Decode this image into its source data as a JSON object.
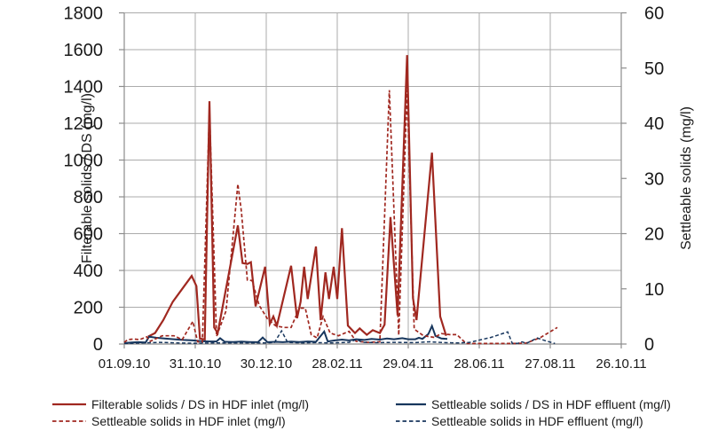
{
  "chart_data": {
    "type": "line",
    "title": "",
    "x_axis": {
      "tick_labels": [
        "01.09.10",
        "31.10.10",
        "30.12.10",
        "28.02.11",
        "29.04.11",
        "28.06.11",
        "27.08.11",
        "26.10.11"
      ],
      "major_tick_days": [
        0,
        60,
        120,
        180,
        240,
        300,
        360,
        420
      ],
      "range_days": [
        0,
        420
      ]
    },
    "left_axis": {
      "label": "Filterable solids / DS (mg/l)",
      "min": 0,
      "max": 1800,
      "tick_step": 200
    },
    "right_axis": {
      "label": "Settleable solids (mg/l)",
      "min": 0,
      "max": 60,
      "tick_step": 10
    },
    "grid": {
      "horizontal_step_left_units": 200,
      "vertical_at_major_ticks": true
    },
    "legend_position": "bottom",
    "colors": {
      "grid": "#ababab",
      "axis": "#8c8c8c",
      "tick_text": "#1a1a1a",
      "inlet_red": "#a02820",
      "effluent_blue": "#17365d"
    },
    "series": [
      {
        "name": "Filterable solids / DS in HDF inlet (mg/l)",
        "axis": "left",
        "style": "solid",
        "color": "#a02820",
        "width": 2.2,
        "points": [
          [
            20,
            40
          ],
          [
            26,
            60
          ],
          [
            33,
            130
          ],
          [
            41,
            230
          ],
          [
            49,
            300
          ],
          [
            57,
            370
          ],
          [
            61,
            315
          ],
          [
            64,
            30
          ],
          [
            68,
            25
          ],
          [
            72,
            1320
          ],
          [
            76,
            90
          ],
          [
            79,
            60
          ],
          [
            96,
            645
          ],
          [
            100,
            440
          ],
          [
            104,
            435
          ],
          [
            107,
            445
          ],
          [
            111,
            205
          ],
          [
            119,
            420
          ],
          [
            123,
            110
          ],
          [
            126,
            150
          ],
          [
            129,
            100
          ],
          [
            141,
            425
          ],
          [
            146,
            140
          ],
          [
            149,
            230
          ],
          [
            152,
            420
          ],
          [
            155,
            245
          ],
          [
            162,
            530
          ],
          [
            166,
            130
          ],
          [
            170,
            390
          ],
          [
            173,
            245
          ],
          [
            177,
            420
          ],
          [
            180,
            245
          ],
          [
            184,
            630
          ],
          [
            189,
            100
          ],
          [
            195,
            60
          ],
          [
            199,
            85
          ],
          [
            205,
            50
          ],
          [
            210,
            75
          ],
          [
            216,
            60
          ],
          [
            220,
            105
          ],
          [
            225,
            690
          ],
          [
            231,
            155
          ],
          [
            239,
            1570
          ],
          [
            244,
            250
          ],
          [
            247,
            130
          ],
          [
            260,
            1040
          ],
          [
            267,
            150
          ],
          [
            272,
            45
          ]
        ]
      },
      {
        "name": "Settleable solids in HDF inlet (mg/l)",
        "axis": "right",
        "style": "dashed",
        "color": "#a02820",
        "width": 1.7,
        "points": [
          [
            0,
            0.3
          ],
          [
            3,
            0.8
          ],
          [
            8,
            0.9
          ],
          [
            13,
            0.8
          ],
          [
            19,
            1.3
          ],
          [
            22,
            0.5
          ],
          [
            32,
            1.5
          ],
          [
            42,
            1.5
          ],
          [
            49,
            0.8
          ],
          [
            58,
            4.1
          ],
          [
            62,
            0.4
          ],
          [
            66,
            0.3
          ],
          [
            72,
            42.5
          ],
          [
            78,
            1.4
          ],
          [
            86,
            6
          ],
          [
            96,
            29
          ],
          [
            99,
            24
          ],
          [
            104,
            11.6
          ],
          [
            108,
            11.5
          ],
          [
            114,
            7
          ],
          [
            121,
            4.6
          ],
          [
            128,
            3.3
          ],
          [
            135,
            3
          ],
          [
            141,
            3
          ],
          [
            148,
            6.5
          ],
          [
            153,
            6.5
          ],
          [
            158,
            1.7
          ],
          [
            163,
            1.1
          ],
          [
            168,
            5
          ],
          [
            174,
            2
          ],
          [
            181,
            1.5
          ],
          [
            190,
            2.3
          ],
          [
            196,
            0.5
          ],
          [
            206,
            0.3
          ],
          [
            216,
            0.4
          ],
          [
            224,
            46
          ],
          [
            232,
            1.6
          ],
          [
            239,
            46
          ],
          [
            245,
            2.7
          ],
          [
            253,
            1.5
          ],
          [
            262,
            1.2
          ],
          [
            268,
            1.9
          ],
          [
            275,
            1.7
          ],
          [
            281,
            1.7
          ],
          [
            289,
            0.1
          ],
          [
            310,
            0.1
          ],
          [
            331,
            0.1
          ],
          [
            340,
            0.2
          ],
          [
            352,
            1.2
          ],
          [
            366,
            3
          ]
        ]
      },
      {
        "name": "Settleable solids / DS in HDF effluent (mg/l)",
        "axis": "left",
        "style": "solid",
        "color": "#17365d",
        "width": 2,
        "points": [
          [
            0,
            5
          ],
          [
            6,
            8
          ],
          [
            12,
            10
          ],
          [
            18,
            8
          ],
          [
            21,
            40
          ],
          [
            27,
            34
          ],
          [
            34,
            30
          ],
          [
            42,
            26
          ],
          [
            50,
            22
          ],
          [
            58,
            20
          ],
          [
            65,
            16
          ],
          [
            72,
            14
          ],
          [
            78,
            14
          ],
          [
            81,
            32
          ],
          [
            85,
            12
          ],
          [
            92,
            11
          ],
          [
            99,
            13
          ],
          [
            106,
            11
          ],
          [
            113,
            10
          ],
          [
            117,
            35
          ],
          [
            121,
            10
          ],
          [
            128,
            12
          ],
          [
            134,
            10
          ],
          [
            141,
            13
          ],
          [
            148,
            11
          ],
          [
            155,
            14
          ],
          [
            162,
            12
          ],
          [
            169,
            68
          ],
          [
            172,
            14
          ],
          [
            178,
            20
          ],
          [
            184,
            24
          ],
          [
            190,
            20
          ],
          [
            196,
            26
          ],
          [
            203,
            22
          ],
          [
            209,
            28
          ],
          [
            216,
            24
          ],
          [
            222,
            30
          ],
          [
            228,
            26
          ],
          [
            235,
            32
          ],
          [
            240,
            26
          ],
          [
            246,
            26
          ],
          [
            249,
            34
          ],
          [
            252,
            28
          ],
          [
            257,
            55
          ],
          [
            260,
            98
          ],
          [
            263,
            44
          ],
          [
            268,
            30
          ],
          [
            273,
            28
          ]
        ]
      },
      {
        "name": "Settleable solids in HDF effluent (mg/l)",
        "axis": "right",
        "style": "dashed",
        "color": "#17365d",
        "width": 1.5,
        "points": [
          [
            0,
            0.1
          ],
          [
            15,
            0.2
          ],
          [
            30,
            0.3
          ],
          [
            45,
            0.2
          ],
          [
            60,
            0.15
          ],
          [
            75,
            0.2
          ],
          [
            90,
            0.2
          ],
          [
            105,
            0.2
          ],
          [
            120,
            0.2
          ],
          [
            127,
            0.3
          ],
          [
            133,
            2.4
          ],
          [
            138,
            0.3
          ],
          [
            150,
            0.2
          ],
          [
            162,
            0.25
          ],
          [
            175,
            0.2
          ],
          [
            190,
            0.3
          ],
          [
            196,
            0.8
          ],
          [
            202,
            0.3
          ],
          [
            215,
            0.25
          ],
          [
            230,
            0.3
          ],
          [
            245,
            0.25
          ],
          [
            258,
            0.4
          ],
          [
            270,
            0.25
          ],
          [
            283,
            0.2
          ],
          [
            292,
            0.3
          ],
          [
            310,
            1.2
          ],
          [
            324,
            2.2
          ],
          [
            328,
            0.1
          ],
          [
            333,
            0.15
          ],
          [
            336,
            0.4
          ],
          [
            340,
            0.15
          ],
          [
            349,
            1.1
          ],
          [
            356,
            0.6
          ],
          [
            364,
            0.1
          ]
        ]
      }
    ]
  }
}
